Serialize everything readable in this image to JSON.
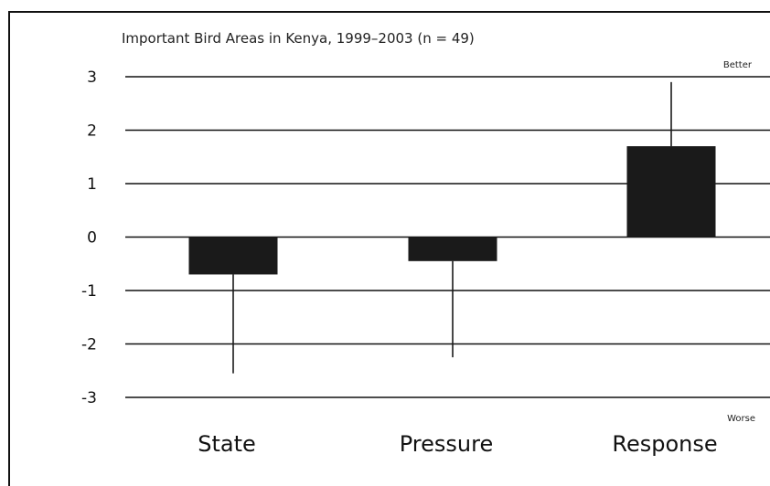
{
  "chart_data": {
    "type": "bar",
    "title": "Important Bird Areas in Kenya, 1999–2003 (n = 49)",
    "categories": [
      "State",
      "Pressure",
      "Response"
    ],
    "values": [
      -0.7,
      -0.45,
      1.7
    ],
    "error_bars": [
      {
        "low": -2.55,
        "high": -0.7
      },
      {
        "low": -2.25,
        "high": -0.45
      },
      {
        "low": 1.7,
        "high": 2.9
      }
    ],
    "ylim": [
      -3,
      3
    ],
    "yticks": [
      "3",
      "2",
      "1",
      "0",
      "-1",
      "-2",
      "-3"
    ],
    "ytick_values": [
      3,
      2,
      1,
      0,
      -1,
      -2,
      -3
    ],
    "grid": true,
    "upper_annotation": "Better",
    "lower_annotation": "Worse",
    "bar_color": "#1a1a1a",
    "grid_color": "#111111"
  }
}
